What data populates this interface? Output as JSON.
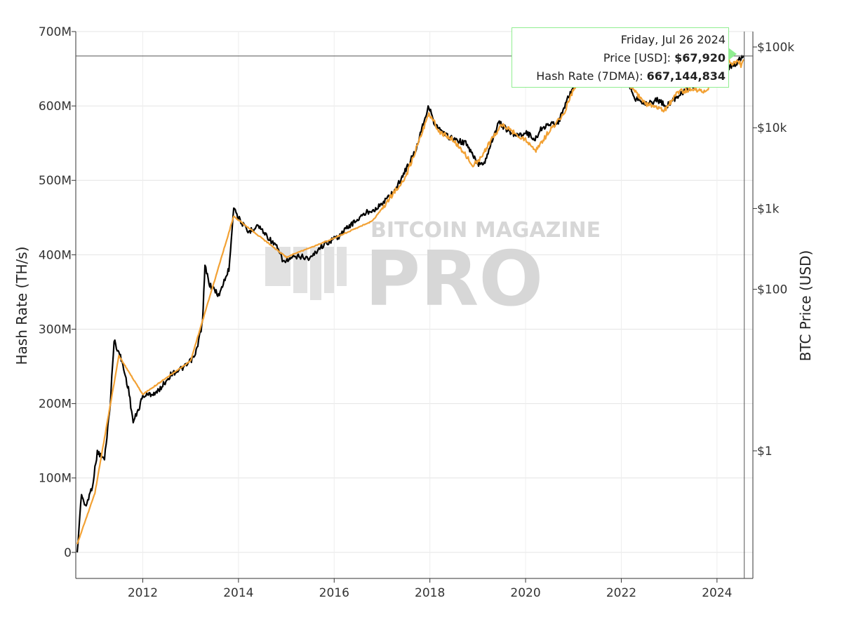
{
  "chart_data": {
    "type": "line",
    "title": "",
    "y_left_label": "Hash Rate (TH/s)",
    "y_right_label": "BTC Price (USD)",
    "x_range_years": [
      2010.6,
      2024.75
    ],
    "x_ticks": [
      2012,
      2014,
      2016,
      2018,
      2020,
      2022,
      2024
    ],
    "x_tick_labels": [
      "2012",
      "2014",
      "2016",
      "2018",
      "2020",
      "2022",
      "2024"
    ],
    "y_left_range": [
      -35000000,
      700000000
    ],
    "y_left_ticks": [
      0,
      100000000,
      200000000,
      300000000,
      400000000,
      500000000,
      600000000,
      700000000
    ],
    "y_left_tick_labels": [
      "0",
      "100M",
      "200M",
      "300M",
      "400M",
      "500M",
      "600M",
      "700M"
    ],
    "y_right_scale": "log",
    "y_right_ticks": [
      1,
      100,
      1000,
      10000,
      100000
    ],
    "y_right_tick_labels": [
      "$1",
      "$100",
      "$1k",
      "$10k",
      "$100k"
    ],
    "watermark": {
      "line1": "BITCOIN MAGAZINE",
      "line2": "PRO"
    },
    "grid": true,
    "series": [
      {
        "name": "Hash Rate (7DMA)",
        "axis": "left",
        "color": "#000000",
        "points": [
          [
            2010.63,
            0
          ],
          [
            2010.72,
            80000000
          ],
          [
            2010.8,
            60000000
          ],
          [
            2010.95,
            90000000
          ],
          [
            2011.05,
            135000000
          ],
          [
            2011.2,
            125000000
          ],
          [
            2011.32,
            200000000
          ],
          [
            2011.4,
            285000000
          ],
          [
            2011.55,
            260000000
          ],
          [
            2011.7,
            220000000
          ],
          [
            2011.8,
            175000000
          ],
          [
            2011.9,
            190000000
          ],
          [
            2012.0,
            210000000
          ],
          [
            2012.3,
            215000000
          ],
          [
            2012.6,
            240000000
          ],
          [
            2012.9,
            250000000
          ],
          [
            2013.1,
            265000000
          ],
          [
            2013.25,
            310000000
          ],
          [
            2013.3,
            385000000
          ],
          [
            2013.4,
            360000000
          ],
          [
            2013.6,
            345000000
          ],
          [
            2013.7,
            365000000
          ],
          [
            2013.8,
            380000000
          ],
          [
            2013.9,
            465000000
          ],
          [
            2014.0,
            450000000
          ],
          [
            2014.2,
            430000000
          ],
          [
            2014.4,
            440000000
          ],
          [
            2014.6,
            425000000
          ],
          [
            2014.8,
            410000000
          ],
          [
            2014.95,
            390000000
          ],
          [
            2015.1,
            395000000
          ],
          [
            2015.3,
            398000000
          ],
          [
            2015.5,
            395000000
          ],
          [
            2015.7,
            410000000
          ],
          [
            2015.9,
            418000000
          ],
          [
            2016.1,
            425000000
          ],
          [
            2016.3,
            438000000
          ],
          [
            2016.5,
            448000000
          ],
          [
            2016.7,
            458000000
          ],
          [
            2016.9,
            463000000
          ],
          [
            2017.1,
            475000000
          ],
          [
            2017.3,
            490000000
          ],
          [
            2017.5,
            515000000
          ],
          [
            2017.7,
            540000000
          ],
          [
            2017.85,
            575000000
          ],
          [
            2017.98,
            600000000
          ],
          [
            2018.1,
            575000000
          ],
          [
            2018.3,
            562000000
          ],
          [
            2018.5,
            555000000
          ],
          [
            2018.75,
            550000000
          ],
          [
            2019.0,
            522000000
          ],
          [
            2019.15,
            525000000
          ],
          [
            2019.3,
            555000000
          ],
          [
            2019.45,
            578000000
          ],
          [
            2019.65,
            565000000
          ],
          [
            2019.85,
            560000000
          ],
          [
            2020.0,
            565000000
          ],
          [
            2020.2,
            555000000
          ],
          [
            2020.35,
            572000000
          ],
          [
            2020.55,
            575000000
          ],
          [
            2020.7,
            580000000
          ],
          [
            2020.85,
            605000000
          ],
          [
            2021.0,
            625000000
          ],
          [
            2021.3,
            645000000
          ],
          [
            2021.5,
            660000000
          ],
          [
            2021.7,
            650000000
          ],
          [
            2021.9,
            640000000
          ],
          [
            2022.1,
            638000000
          ],
          [
            2022.3,
            610000000
          ],
          [
            2022.55,
            603000000
          ],
          [
            2022.75,
            608000000
          ],
          [
            2022.95,
            600000000
          ],
          [
            2023.2,
            615000000
          ],
          [
            2023.45,
            625000000
          ],
          [
            2023.7,
            630000000
          ],
          [
            2023.95,
            640000000
          ],
          [
            2024.15,
            650000000
          ],
          [
            2024.35,
            655000000
          ],
          [
            2024.57,
            667144834
          ]
        ]
      },
      {
        "name": "Price [USD]",
        "axis": "right",
        "color": "#f2a134",
        "points": [
          [
            2010.63,
            0.07
          ],
          [
            2011.0,
            0.3
          ],
          [
            2011.5,
            15
          ],
          [
            2012.0,
            5
          ],
          [
            2013.0,
            13
          ],
          [
            2013.9,
            800
          ],
          [
            2015.0,
            250
          ],
          [
            2016.0,
            430
          ],
          [
            2016.8,
            700
          ],
          [
            2017.0,
            1000
          ],
          [
            2017.5,
            2500
          ],
          [
            2017.98,
            15000
          ],
          [
            2018.2,
            9000
          ],
          [
            2018.5,
            7000
          ],
          [
            2018.9,
            3500
          ],
          [
            2019.0,
            3800
          ],
          [
            2019.5,
            11000
          ],
          [
            2019.98,
            7200
          ],
          [
            2020.2,
            5000
          ],
          [
            2020.5,
            9200
          ],
          [
            2020.8,
            15000
          ],
          [
            2021.0,
            30000
          ],
          [
            2021.3,
            60000
          ],
          [
            2021.5,
            33000
          ],
          [
            2021.85,
            65000
          ],
          [
            2022.0,
            45000
          ],
          [
            2022.5,
            20000
          ],
          [
            2022.9,
            16500
          ],
          [
            2023.2,
            28000
          ],
          [
            2023.5,
            30000
          ],
          [
            2023.75,
            27000
          ],
          [
            2023.95,
            42000
          ],
          [
            2024.2,
            71000
          ],
          [
            2024.35,
            62000
          ],
          [
            2024.45,
            68000
          ],
          [
            2024.5,
            58000
          ],
          [
            2024.57,
            67920
          ]
        ]
      }
    ],
    "hover_date_value": 2024.57,
    "tooltip": {
      "date": "Friday, Jul 26 2024",
      "price_label": "Price [USD]",
      "price_value": "$67,920",
      "hash_label": "Hash Rate (7DMA)",
      "hash_value": "667,144,834"
    }
  }
}
